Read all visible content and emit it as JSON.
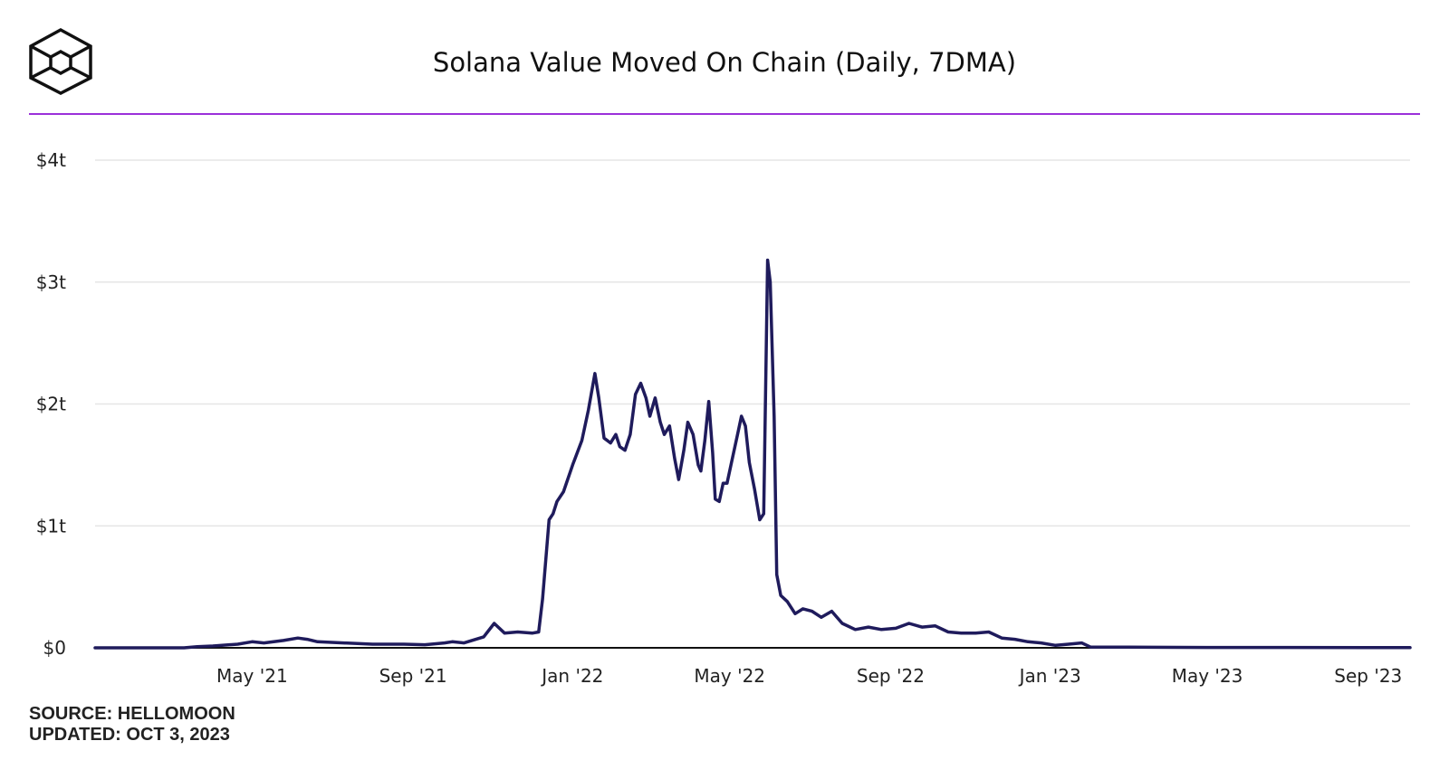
{
  "header": {
    "title": "Solana Value Moved On Chain (Daily, 7DMA)",
    "logo_icon": "the-block-cube-logo-icon"
  },
  "footer": {
    "source": "SOURCE: HELLOMOON",
    "updated": "UPDATED: OCT 3, 2023"
  },
  "colors": {
    "line": "#1f1b5c",
    "accent_rule": "#9b30d9",
    "grid": "#e6e6e6",
    "axis": "#111111"
  },
  "chart_data": {
    "type": "line",
    "title": "Solana Value Moved On Chain (Daily, 7DMA)",
    "xlabel": "",
    "ylabel": "",
    "y_unit": "trillion USD",
    "ylim": [
      0,
      4
    ],
    "xlim": [
      "2021-01-01",
      "2023-10-03"
    ],
    "y_ticks": [
      {
        "value": 0,
        "label": "$0"
      },
      {
        "value": 1,
        "label": "$1t"
      },
      {
        "value": 2,
        "label": "$2t"
      },
      {
        "value": 3,
        "label": "$3t"
      },
      {
        "value": 4,
        "label": "$4t"
      }
    ],
    "x_ticks": [
      {
        "date": "2021-05-01",
        "label": "May '21"
      },
      {
        "date": "2021-09-01",
        "label": "Sep '21"
      },
      {
        "date": "2022-01-01",
        "label": "Jan '22"
      },
      {
        "date": "2022-05-01",
        "label": "May '22"
      },
      {
        "date": "2022-09-01",
        "label": "Sep '22"
      },
      {
        "date": "2023-01-01",
        "label": "Jan '23"
      },
      {
        "date": "2023-05-01",
        "label": "May '23"
      },
      {
        "date": "2023-09-01",
        "label": "Sep '23"
      }
    ],
    "grid": true,
    "legend": "none",
    "series": [
      {
        "points": [
          [
            "2021-01-01",
            0.0
          ],
          [
            "2021-02-10",
            0.0
          ],
          [
            "2021-03-10",
            0.0
          ],
          [
            "2021-03-20",
            0.01
          ],
          [
            "2021-04-01",
            0.015
          ],
          [
            "2021-04-20",
            0.03
          ],
          [
            "2021-05-01",
            0.05
          ],
          [
            "2021-05-10",
            0.04
          ],
          [
            "2021-05-25",
            0.06
          ],
          [
            "2021-06-05",
            0.08
          ],
          [
            "2021-06-12",
            0.07
          ],
          [
            "2021-06-20",
            0.05
          ],
          [
            "2021-07-10",
            0.04
          ],
          [
            "2021-08-01",
            0.03
          ],
          [
            "2021-08-25",
            0.03
          ],
          [
            "2021-09-10",
            0.025
          ],
          [
            "2021-09-25",
            0.04
          ],
          [
            "2021-10-01",
            0.05
          ],
          [
            "2021-10-10",
            0.04
          ],
          [
            "2021-10-25",
            0.09
          ],
          [
            "2021-11-02",
            0.2
          ],
          [
            "2021-11-10",
            0.12
          ],
          [
            "2021-11-20",
            0.13
          ],
          [
            "2021-12-01",
            0.12
          ],
          [
            "2021-12-06",
            0.13
          ],
          [
            "2021-12-09",
            0.4
          ],
          [
            "2021-12-14",
            1.05
          ],
          [
            "2021-12-17",
            1.1
          ],
          [
            "2021-12-20",
            1.2
          ],
          [
            "2021-12-25",
            1.28
          ],
          [
            "2022-01-01",
            1.5
          ],
          [
            "2022-01-08",
            1.7
          ],
          [
            "2022-01-13",
            1.95
          ],
          [
            "2022-01-18",
            2.25
          ],
          [
            "2022-01-21",
            2.05
          ],
          [
            "2022-01-25",
            1.72
          ],
          [
            "2022-01-30",
            1.68
          ],
          [
            "2022-02-03",
            1.75
          ],
          [
            "2022-02-06",
            1.65
          ],
          [
            "2022-02-10",
            1.62
          ],
          [
            "2022-02-14",
            1.75
          ],
          [
            "2022-02-18",
            2.08
          ],
          [
            "2022-02-22",
            2.17
          ],
          [
            "2022-02-26",
            2.05
          ],
          [
            "2022-03-01",
            1.9
          ],
          [
            "2022-03-05",
            2.05
          ],
          [
            "2022-03-09",
            1.85
          ],
          [
            "2022-03-12",
            1.75
          ],
          [
            "2022-03-16",
            1.82
          ],
          [
            "2022-03-20",
            1.55
          ],
          [
            "2022-03-23",
            1.38
          ],
          [
            "2022-03-27",
            1.62
          ],
          [
            "2022-03-30",
            1.85
          ],
          [
            "2022-04-03",
            1.75
          ],
          [
            "2022-04-07",
            1.5
          ],
          [
            "2022-04-09",
            1.45
          ],
          [
            "2022-04-12",
            1.7
          ],
          [
            "2022-04-15",
            2.02
          ],
          [
            "2022-04-18",
            1.6
          ],
          [
            "2022-04-20",
            1.22
          ],
          [
            "2022-04-23",
            1.2
          ],
          [
            "2022-04-26",
            1.35
          ],
          [
            "2022-04-29",
            1.35
          ],
          [
            "2022-05-03",
            1.55
          ],
          [
            "2022-05-07",
            1.75
          ],
          [
            "2022-05-10",
            1.9
          ],
          [
            "2022-05-13",
            1.82
          ],
          [
            "2022-05-16",
            1.52
          ],
          [
            "2022-05-20",
            1.3
          ],
          [
            "2022-05-24",
            1.05
          ],
          [
            "2022-05-27",
            1.1
          ],
          [
            "2022-05-30",
            3.18
          ],
          [
            "2022-06-01",
            3.0
          ],
          [
            "2022-06-04",
            1.9
          ],
          [
            "2022-06-06",
            0.6
          ],
          [
            "2022-06-09",
            0.43
          ],
          [
            "2022-06-14",
            0.38
          ],
          [
            "2022-06-20",
            0.28
          ],
          [
            "2022-06-26",
            0.32
          ],
          [
            "2022-07-03",
            0.3
          ],
          [
            "2022-07-10",
            0.25
          ],
          [
            "2022-07-18",
            0.3
          ],
          [
            "2022-07-26",
            0.2
          ],
          [
            "2022-08-05",
            0.15
          ],
          [
            "2022-08-15",
            0.17
          ],
          [
            "2022-08-25",
            0.15
          ],
          [
            "2022-09-05",
            0.16
          ],
          [
            "2022-09-15",
            0.2
          ],
          [
            "2022-09-25",
            0.17
          ],
          [
            "2022-10-05",
            0.18
          ],
          [
            "2022-10-15",
            0.13
          ],
          [
            "2022-10-25",
            0.12
          ],
          [
            "2022-11-05",
            0.12
          ],
          [
            "2022-11-15",
            0.13
          ],
          [
            "2022-11-25",
            0.08
          ],
          [
            "2022-12-05",
            0.07
          ],
          [
            "2022-12-15",
            0.05
          ],
          [
            "2022-12-25",
            0.04
          ],
          [
            "2023-01-05",
            0.02
          ],
          [
            "2023-01-15",
            0.03
          ],
          [
            "2023-01-25",
            0.04
          ],
          [
            "2023-02-01",
            0.005
          ],
          [
            "2023-03-01",
            0.005
          ],
          [
            "2023-05-01",
            0.003
          ],
          [
            "2023-07-01",
            0.003
          ],
          [
            "2023-09-01",
            0.002
          ],
          [
            "2023-10-03",
            0.002
          ]
        ]
      }
    ]
  }
}
